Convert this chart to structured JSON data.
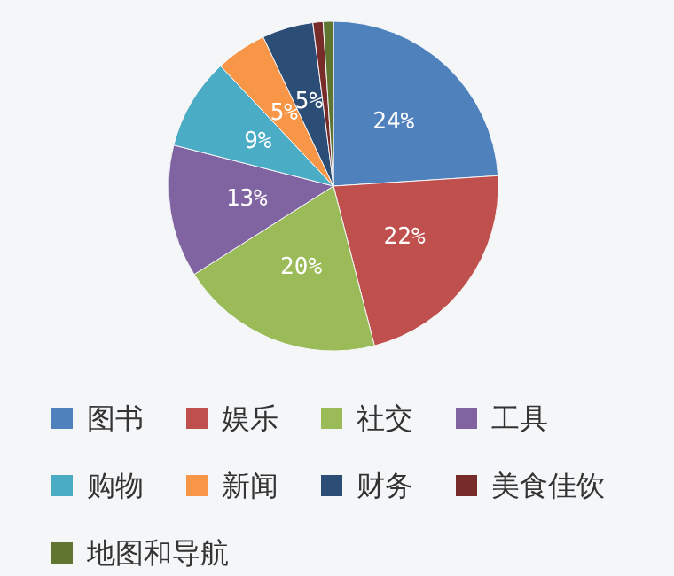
{
  "chart_data": {
    "type": "pie",
    "categories": [
      "图书",
      "娱乐",
      "社交",
      "工具",
      "购物",
      "新闻",
      "财务",
      "美食佳饮",
      "地图和导航"
    ],
    "values": [
      24,
      22,
      20,
      13,
      9,
      5,
      5,
      1,
      1
    ],
    "colors": [
      "#4f81bd",
      "#c0504d",
      "#9bbb59",
      "#8064a2",
      "#4bacc6",
      "#f79646",
      "#2c4d75",
      "#772c2a",
      "#5f7530"
    ],
    "value_labels": [
      "24%",
      "22%",
      "20%",
      "13%",
      "9%",
      "5%",
      "5%",
      null,
      null
    ],
    "legend": "bottom"
  }
}
